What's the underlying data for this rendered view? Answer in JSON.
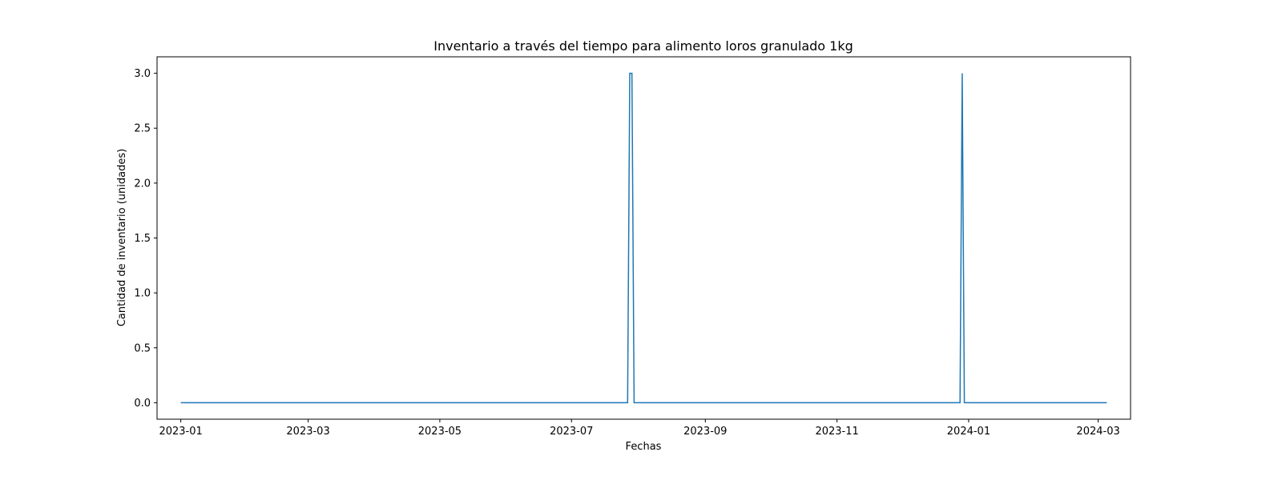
{
  "chart_data": {
    "type": "line",
    "title": "Inventario a través del tiempo para alimento loros granulado 1kg",
    "xlabel": "Fechas",
    "ylabel": "Cantidad de inventario (unidades)",
    "xlim": [
      "2022-12-21",
      "2024-03-16"
    ],
    "ylim": [
      -0.15,
      3.15
    ],
    "x_ticks": [
      {
        "date": "2023-01-01",
        "label": "2023-01"
      },
      {
        "date": "2023-03-01",
        "label": "2023-03"
      },
      {
        "date": "2023-05-01",
        "label": "2023-05"
      },
      {
        "date": "2023-07-01",
        "label": "2023-07"
      },
      {
        "date": "2023-09-01",
        "label": "2023-09"
      },
      {
        "date": "2023-11-01",
        "label": "2023-11"
      },
      {
        "date": "2024-01-01",
        "label": "2024-01"
      },
      {
        "date": "2024-03-01",
        "label": "2024-03"
      }
    ],
    "y_ticks": [
      {
        "value": 0.0,
        "label": "0.0"
      },
      {
        "value": 0.5,
        "label": "0.5"
      },
      {
        "value": 1.0,
        "label": "1.0"
      },
      {
        "value": 1.5,
        "label": "1.5"
      },
      {
        "value": 2.0,
        "label": "2.0"
      },
      {
        "value": 2.5,
        "label": "2.5"
      },
      {
        "value": 3.0,
        "label": "3.0"
      }
    ],
    "grid": false,
    "series": [
      {
        "color": "#1f77b4",
        "points": [
          {
            "x": "2023-01-01",
            "y": 0
          },
          {
            "x": "2023-07-27",
            "y": 0
          },
          {
            "x": "2023-07-28",
            "y": 3
          },
          {
            "x": "2023-07-29",
            "y": 3
          },
          {
            "x": "2023-07-30",
            "y": 0
          },
          {
            "x": "2023-12-28",
            "y": 0
          },
          {
            "x": "2023-12-29",
            "y": 3
          },
          {
            "x": "2023-12-30",
            "y": 0
          },
          {
            "x": "2024-03-05",
            "y": 0
          }
        ]
      }
    ]
  }
}
